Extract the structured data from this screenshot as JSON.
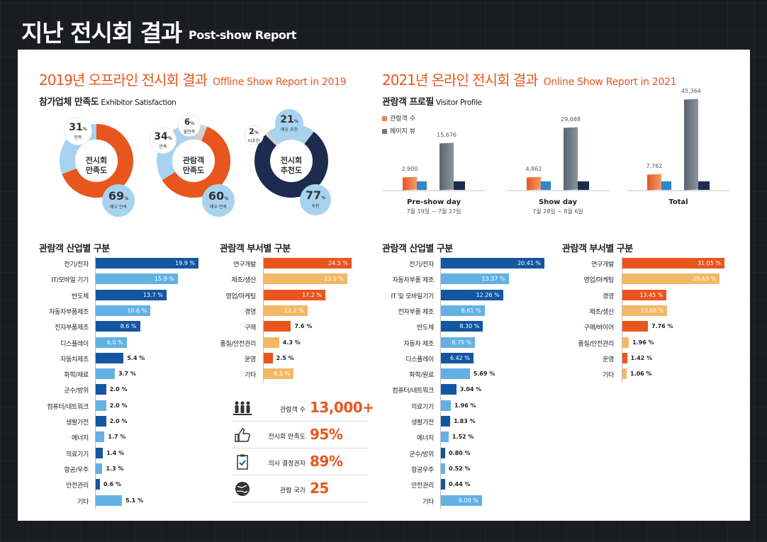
{
  "header": {
    "title": "지난 전시회 결과",
    "subtitle": "Post-show Report"
  },
  "colors": {
    "orange": "#e8561d",
    "lightOrange": "#f3b865",
    "navy": "#1d2b4f",
    "darkBlue": "#1456a0",
    "lightBlue": "#63b1e3",
    "grey": "#6f7880",
    "skyBubble": "#a8d3ef"
  },
  "offline": {
    "title": "2019년 오프라인 전시회 결과",
    "title_en": "Offline Show Report in 2019",
    "satisfaction": {
      "title": "참가업체 만족도",
      "title_en": "Exhibitor Satisfaction",
      "exhibitor": {
        "center": [
          "전시회",
          "만족도"
        ],
        "low": "31",
        "low_label": "만족",
        "high": "69",
        "high_label": "매우 만족"
      },
      "visitor": {
        "center": [
          "관람객",
          "만족도"
        ],
        "a": "34",
        "a_label": "만족",
        "b": "6",
        "b_label": "불만족",
        "high": "60",
        "high_label": "매우 만족"
      },
      "recommend": {
        "center": [
          "전시회",
          "추천도"
        ],
        "a": "21",
        "a_label": "매우 추천",
        "b": "2",
        "b_label": "비추천",
        "high": "77",
        "high_label": "추천"
      },
      "pct": "%"
    },
    "industry": {
      "title": "관람객 산업별 구분",
      "items": [
        {
          "label": "전기/전자",
          "value": 19.9,
          "text": "19.9 %"
        },
        {
          "label": "IT/모바일 기기",
          "value": 15.9,
          "text": "15.9 %"
        },
        {
          "label": "반도체",
          "value": 13.7,
          "text": "13.7 %"
        },
        {
          "label": "자동차부품제조",
          "value": 10.6,
          "text": "10.6 %"
        },
        {
          "label": "전자부품제조",
          "value": 8.6,
          "text": "8.6 %"
        },
        {
          "label": "디스플레이",
          "value": 6.0,
          "text": "6.0 %"
        },
        {
          "label": "자동차제조",
          "value": 5.4,
          "text": "5.4 %"
        },
        {
          "label": "화학/재료",
          "value": 3.7,
          "text": "3.7 %"
        },
        {
          "label": "군수/방위",
          "value": 2.0,
          "text": "2.0 %"
        },
        {
          "label": "컴퓨터/네트워크",
          "value": 2.0,
          "text": "2.0 %"
        },
        {
          "label": "생활가전",
          "value": 2.0,
          "text": "2.0 %"
        },
        {
          "label": "에너지",
          "value": 1.7,
          "text": "1.7 %"
        },
        {
          "label": "의료기기",
          "value": 1.4,
          "text": "1.4 %"
        },
        {
          "label": "항공/우주",
          "value": 1.3,
          "text": "1.3 %"
        },
        {
          "label": "안전관리",
          "value": 0.6,
          "text": "0.6 %"
        },
        {
          "label": "기타",
          "value": 5.1,
          "text": "5.1 %"
        }
      ]
    },
    "department": {
      "title": "관람객 부서별 구분",
      "items": [
        {
          "label": "연구개발",
          "value": 24.5,
          "text": "24.5 %"
        },
        {
          "label": "제조/생산",
          "value": 23.3,
          "text": "23.3 %"
        },
        {
          "label": "영업/마케팅",
          "value": 17.2,
          "text": "17.2 %"
        },
        {
          "label": "경영",
          "value": 12.2,
          "text": "12.2 %"
        },
        {
          "label": "구매",
          "value": 7.6,
          "text": "7.6 %"
        },
        {
          "label": "품질/안전관리",
          "value": 4.3,
          "text": "4.3 %"
        },
        {
          "label": "운영",
          "value": 2.5,
          "text": "2.5 %"
        },
        {
          "label": "기타",
          "value": 8.3,
          "text": "8.3 %"
        }
      ]
    },
    "stats": [
      {
        "label": "관람객 수",
        "value": "13,000+",
        "icon": "crowd-icon"
      },
      {
        "label": "전시회 만족도",
        "value": "95%",
        "icon": "thumbs-up-icon"
      },
      {
        "label": "의사 결정권자",
        "value": "89%",
        "icon": "clipboard-icon"
      },
      {
        "label": "관람 국가",
        "value": "25",
        "icon": "globe-icon"
      }
    ]
  },
  "online": {
    "title": "2021년 온라인 전시회 결과",
    "title_en": "Online Show Report in 2021",
    "profile": {
      "title": "관람객 프로필",
      "title_en": "Visitor Profile",
      "legend": [
        "관람객 수",
        "페이지 뷰"
      ],
      "groups": [
        {
          "name": "Pre-show day",
          "date": "7월 19일 ~ 7월 27일",
          "visitors": 2900,
          "views": 15676,
          "visitors_text": "2,900",
          "views_text": "15,676"
        },
        {
          "name": "Show day",
          "date": "7월 28일 ~ 8월 6일",
          "visitors": 4862,
          "views": 29688,
          "visitors_text": "4,862",
          "views_text": "29,688"
        },
        {
          "name": "Total",
          "date": "",
          "visitors": 7762,
          "views": 45364,
          "visitors_text": "7,762",
          "views_text": "45,364"
        }
      ]
    },
    "industry": {
      "title": "관람객 산업별 구분",
      "items": [
        {
          "label": "전기/전자",
          "value": 20.41,
          "text": "20.41 %"
        },
        {
          "label": "자동차부품 제조",
          "value": 13.37,
          "text": "13.37 %"
        },
        {
          "label": "IT 및 모바일기기",
          "value": 12.26,
          "text": "12.26 %"
        },
        {
          "label": "전자부품 제조",
          "value": 8.61,
          "text": "8.61 %"
        },
        {
          "label": "반도체",
          "value": 8.3,
          "text": "8.30 %"
        },
        {
          "label": "자동차 제조",
          "value": 6.75,
          "text": "6.75 %"
        },
        {
          "label": "디스플레이",
          "value": 6.42,
          "text": "6.42 %"
        },
        {
          "label": "화학/원료",
          "value": 5.69,
          "text": "5.69 %"
        },
        {
          "label": "컴퓨터/네트워크",
          "value": 3.04,
          "text": "3.04 %"
        },
        {
          "label": "의료기기",
          "value": 1.96,
          "text": "1.96 %"
        },
        {
          "label": "생활가전",
          "value": 1.83,
          "text": "1.83 %"
        },
        {
          "label": "에너지",
          "value": 1.52,
          "text": "1.52 %"
        },
        {
          "label": "군수/방위",
          "value": 0.8,
          "text": "0.80 %"
        },
        {
          "label": "항공우주",
          "value": 0.52,
          "text": "0.52 %"
        },
        {
          "label": "안전관리",
          "value": 0.44,
          "text": "0.44 %"
        },
        {
          "label": "기타",
          "value": 8.09,
          "text": "8.09 %"
        }
      ]
    },
    "department": {
      "title": "관람객 부서별 구분",
      "items": [
        {
          "label": "연구개발",
          "value": 31.05,
          "text": "31.05 %"
        },
        {
          "label": "영업/마케팅",
          "value": 29.63,
          "text": "29.63 %"
        },
        {
          "label": "경영",
          "value": 13.45,
          "text": "13.45 %"
        },
        {
          "label": "제조/생산",
          "value": 13.68,
          "text": "13.68 %"
        },
        {
          "label": "구매/바이어",
          "value": 7.76,
          "text": "7.76 %"
        },
        {
          "label": "품질/안전관리",
          "value": 1.96,
          "text": "1.96 %"
        },
        {
          "label": "운영",
          "value": 1.42,
          "text": "1.42 %"
        },
        {
          "label": "기타",
          "value": 1.06,
          "text": "1.06 %"
        }
      ]
    }
  }
}
